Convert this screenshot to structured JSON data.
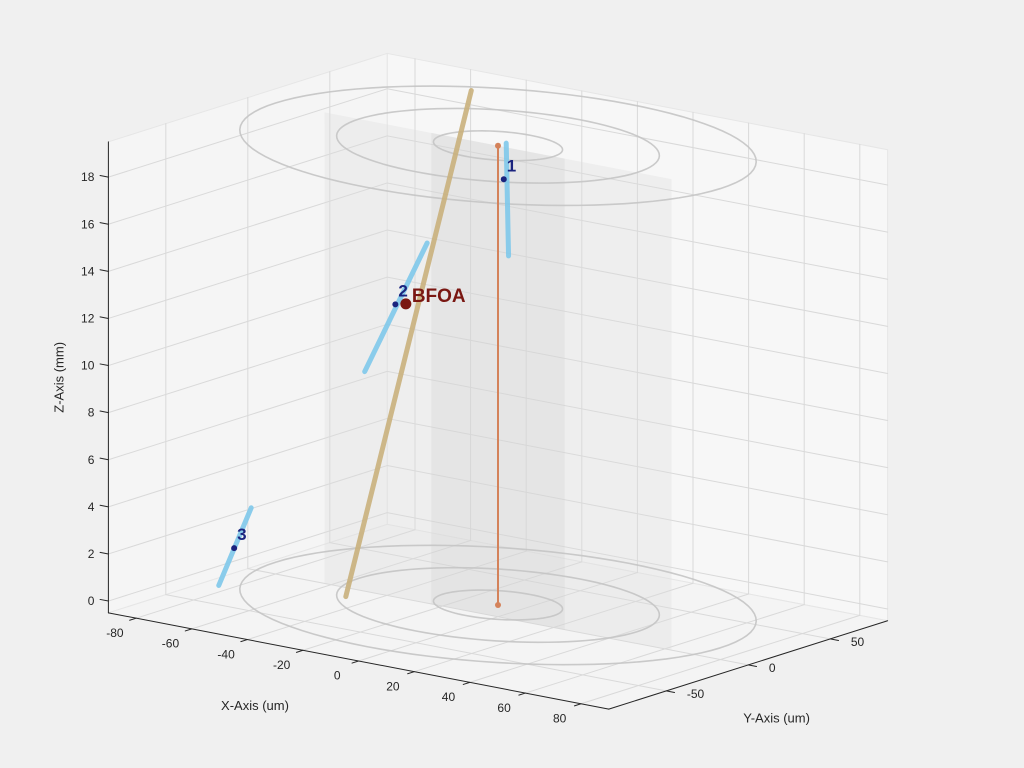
{
  "chart_data": {
    "type": "3d-line",
    "xlabel": "X-Axis (um)",
    "ylabel": "Y-Axis (um)",
    "zlabel": "Z-Axis (mm)",
    "x_ticks": [
      -80,
      -60,
      -40,
      -20,
      0,
      20,
      40,
      60,
      80
    ],
    "y_ticks": [
      -50,
      0,
      50
    ],
    "z_ticks": [
      0,
      2,
      4,
      6,
      8,
      10,
      12,
      14,
      16,
      18
    ],
    "xlim": [
      -90,
      90
    ],
    "ylim": [
      -85,
      85
    ],
    "zlim": [
      -0.5,
      19.5
    ],
    "grid": true,
    "cylinder_rings_radii_um": [
      20,
      50,
      80
    ],
    "colors": {
      "vertical_line": "#d4825a",
      "bfoa_line": "#c9b07c",
      "short_lines": "#7ec8ea",
      "marker_points": "#1a237e",
      "bfoa_point": "#7a1712",
      "grid": "#d9d9d9",
      "rings": "#c4c4c4"
    },
    "vertical_line": {
      "x": 0,
      "y": 0,
      "z_start": 0,
      "z_end": 19.5
    },
    "bfoa_line": {
      "start": [
        -40,
        -25,
        0
      ],
      "end": [
        -45,
        60,
        19.5
      ]
    },
    "bfoa_point": {
      "label": "BFOA",
      "x": -42,
      "y": 15,
      "z": 11.5
    },
    "short_lines": [
      {
        "label": "1",
        "start": [
          -8,
          20,
          14.2
        ],
        "end": [
          0,
          5,
          19.5
        ],
        "point": [
          -5,
          12,
          17.7
        ]
      },
      {
        "label": "2",
        "start": [
          -45,
          -5,
          9
        ],
        "end": [
          -42,
          28,
          13.8
        ],
        "point": [
          -44,
          12,
          11.5
        ]
      },
      {
        "label": "3",
        "start": [
          -68,
          -55,
          0.5
        ],
        "end": [
          -64,
          -42,
          3.6
        ],
        "point": [
          -66,
          -49,
          2
        ]
      }
    ]
  }
}
